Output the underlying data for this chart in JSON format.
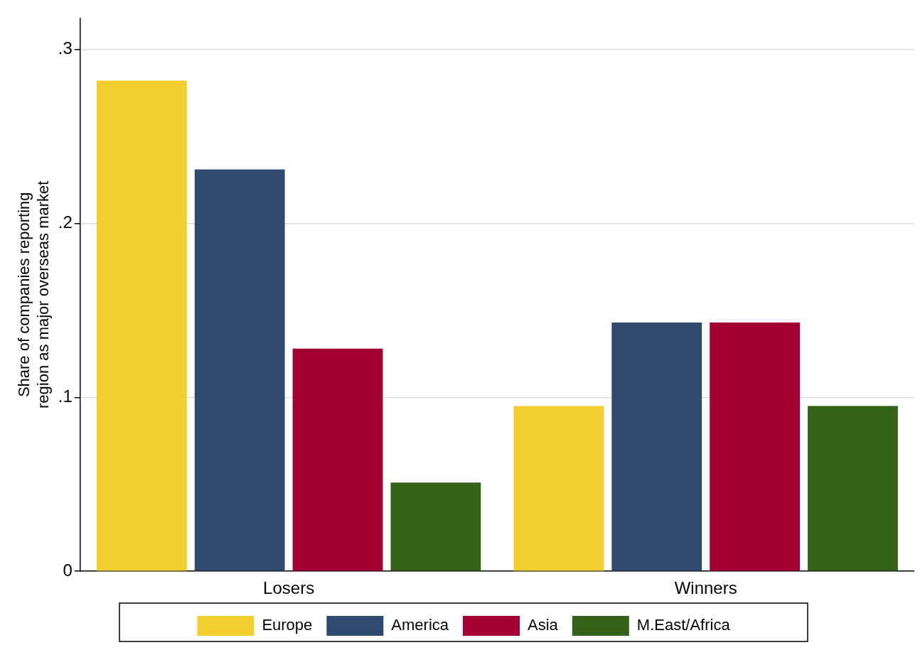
{
  "chart_data": {
    "type": "bar",
    "ylabel": "Share of companies reporting\nregion as major overseas market",
    "categories": [
      "Losers",
      "Winners"
    ],
    "series": [
      {
        "name": "Europe",
        "color": "#f0cf2e",
        "values": [
          0.282,
          0.095
        ]
      },
      {
        "name": "America",
        "color": "#2f4a6e",
        "values": [
          0.231,
          0.143
        ]
      },
      {
        "name": "Asia",
        "color": "#a50034",
        "values": [
          0.128,
          0.143
        ]
      },
      {
        "name": "M.East/Africa",
        "color": "#356219",
        "values": [
          0.051,
          0.095
        ]
      }
    ],
    "ylim": [
      0,
      0.318
    ],
    "yticks": [
      {
        "value": 0,
        "label": "0"
      },
      {
        "value": 0.1,
        "label": ".1"
      },
      {
        "value": 0.2,
        "label": ".2"
      },
      {
        "value": 0.3,
        "label": ".3"
      }
    ],
    "grid": "y",
    "legend": "bottom"
  }
}
